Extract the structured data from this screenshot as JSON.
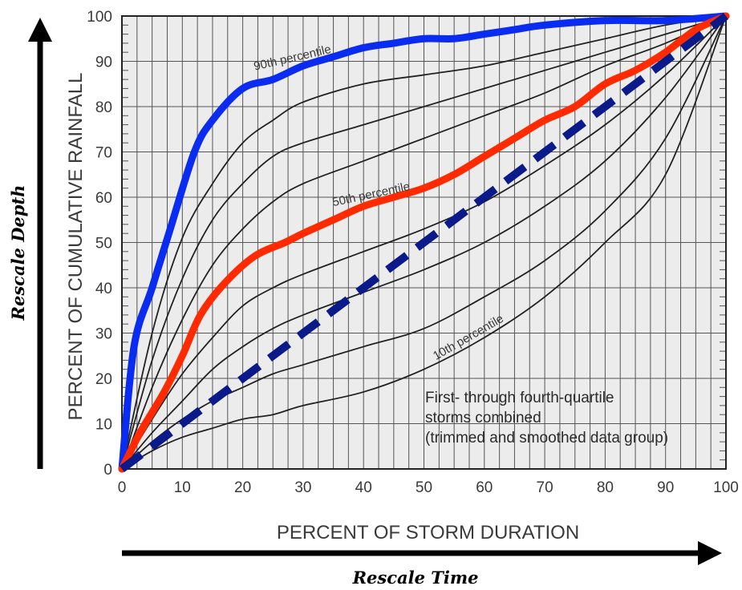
{
  "chart_data": {
    "type": "line",
    "xlabel": "PERCENT OF STORM DURATION",
    "ylabel": "PERCENT OF CUMULATIVE RAINFALL",
    "xlim": [
      0,
      100
    ],
    "ylim": [
      0,
      100
    ],
    "xticks": [
      0,
      10,
      20,
      30,
      40,
      50,
      60,
      70,
      80,
      90,
      100
    ],
    "yticks": [
      0,
      10,
      20,
      30,
      40,
      50,
      60,
      70,
      80,
      90,
      100
    ],
    "grid": true,
    "curve_labels": {
      "p90": "90th percentile",
      "p50": "50th percentile",
      "p10": "10th percentile"
    },
    "annotation": [
      "First- through fourth-quartile",
      "storms combined",
      "(trimmed and smoothed data group)"
    ],
    "series": [
      {
        "color": "#0a2cf0",
        "style": "thick",
        "x": [
          0,
          2,
          5,
          8,
          12,
          15,
          20,
          25,
          30,
          35,
          40,
          45,
          50,
          55,
          60,
          65,
          70,
          80,
          90,
          100
        ],
        "y": [
          0,
          27,
          40,
          53,
          70,
          77,
          84,
          86,
          89,
          91,
          93,
          94,
          95,
          95,
          96,
          97,
          98,
          99,
          99,
          100
        ]
      },
      {
        "color": "#222222",
        "style": "thin",
        "x": [
          0,
          5,
          10,
          15,
          20,
          25,
          30,
          40,
          50,
          60,
          70,
          80,
          90,
          100
        ],
        "y": [
          0,
          30,
          51,
          63,
          72,
          77,
          81,
          85,
          87,
          89,
          92,
          95,
          98,
          100
        ]
      },
      {
        "color": "#222222",
        "style": "thin",
        "x": [
          0,
          5,
          10,
          15,
          20,
          25,
          30,
          40,
          50,
          60,
          70,
          80,
          90,
          100
        ],
        "y": [
          0,
          24,
          42,
          55,
          63,
          69,
          72,
          76,
          80,
          84,
          88,
          92,
          96,
          100
        ]
      },
      {
        "color": "#222222",
        "style": "thin",
        "x": [
          0,
          5,
          10,
          15,
          20,
          25,
          30,
          40,
          50,
          60,
          70,
          80,
          90,
          100
        ],
        "y": [
          0,
          18,
          33,
          45,
          53,
          59,
          63,
          68,
          73,
          78,
          83,
          89,
          94,
          100
        ]
      },
      {
        "color": "#ff2a00",
        "style": "thick",
        "x": [
          0,
          3,
          7,
          10,
          13,
          17,
          22,
          27,
          30,
          35,
          40,
          45,
          50,
          55,
          60,
          65,
          70,
          75,
          80,
          85,
          90,
          95,
          100
        ],
        "y": [
          0,
          8,
          17,
          25,
          34,
          41,
          47,
          50,
          52,
          55,
          58,
          60,
          62,
          65,
          69,
          73,
          77,
          80,
          85,
          88,
          92,
          97,
          100
        ]
      },
      {
        "color": "#222222",
        "style": "thin",
        "x": [
          0,
          5,
          10,
          15,
          20,
          25,
          30,
          40,
          50,
          60,
          70,
          80,
          90,
          100
        ],
        "y": [
          0,
          11,
          21,
          29,
          36,
          40,
          43,
          48,
          53,
          59,
          67,
          76,
          87,
          100
        ]
      },
      {
        "color": "#222222",
        "style": "thin",
        "x": [
          0,
          5,
          10,
          15,
          20,
          25,
          30,
          40,
          50,
          60,
          70,
          80,
          90,
          100
        ],
        "y": [
          0,
          8,
          15,
          22,
          27,
          31,
          34,
          39,
          44,
          50,
          58,
          68,
          82,
          100
        ]
      },
      {
        "color": "#0a1a8a",
        "style": "dashed",
        "x": [
          0,
          100
        ],
        "y": [
          0,
          100
        ]
      },
      {
        "color": "#222222",
        "style": "thin",
        "x": [
          0,
          5,
          10,
          15,
          20,
          25,
          30,
          40,
          50,
          60,
          70,
          80,
          90,
          100
        ],
        "y": [
          0,
          6,
          11,
          15,
          18,
          21,
          23,
          27,
          31,
          38,
          46,
          57,
          73,
          100
        ]
      },
      {
        "color": "#222222",
        "style": "thin",
        "x": [
          0,
          5,
          10,
          15,
          20,
          25,
          30,
          40,
          50,
          60,
          70,
          80,
          90,
          100
        ],
        "y": [
          0,
          4,
          7,
          9,
          11,
          12,
          14,
          17,
          22,
          29,
          38,
          50,
          65,
          100
        ]
      }
    ]
  },
  "rescale_depth": "Rescale Depth",
  "rescale_time": "Rescale Time"
}
